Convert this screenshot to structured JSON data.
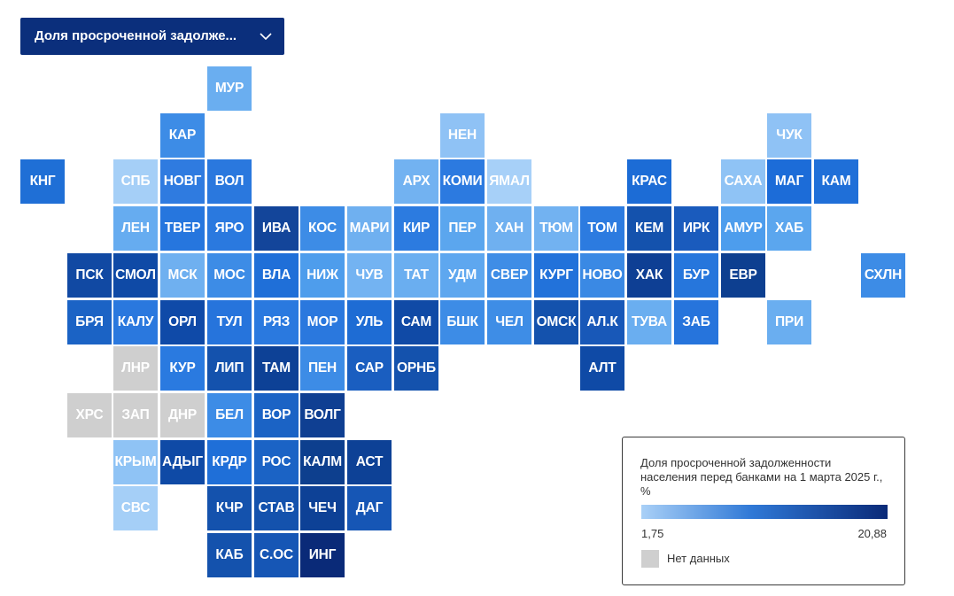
{
  "dropdown": {
    "label": "Доля просроченной задолже...",
    "icon": "chevron-down-icon"
  },
  "legend": {
    "title": "Доля просроченной задолженности населения перед банками на 1 марта 2025 г., %",
    "min": "1,75",
    "max": "20,88",
    "nodata_label": "Нет данных",
    "colors": {
      "low": "#a9d0f7",
      "mid": "#2f78d6",
      "high": "#0a2a78",
      "nodata": "#cfcfcf"
    }
  },
  "tiles": [
    {
      "label": "МУР",
      "row": 0,
      "col": 4,
      "color": "#6aaef0"
    },
    {
      "label": "КАР",
      "row": 1,
      "col": 3,
      "color": "#3d8ce6"
    },
    {
      "label": "НЕН",
      "row": 1,
      "col": 9,
      "color": "#8fc2f5"
    },
    {
      "label": "ЧУК",
      "row": 1,
      "col": 16,
      "color": "#8fc2f5"
    },
    {
      "label": "КНГ",
      "row": 2,
      "col": 0,
      "color": "#1f6fd6"
    },
    {
      "label": "СПБ",
      "row": 2,
      "col": 2,
      "color": "#a5cff7"
    },
    {
      "label": "НОВГ",
      "row": 2,
      "col": 3,
      "color": "#2f7be0"
    },
    {
      "label": "ВОЛ",
      "row": 2,
      "col": 4,
      "color": "#2a78de"
    },
    {
      "label": "АРХ",
      "row": 2,
      "col": 8,
      "color": "#72b2f1"
    },
    {
      "label": "КОМИ",
      "row": 2,
      "col": 9,
      "color": "#2c7ae0"
    },
    {
      "label": "ЯМАЛ",
      "row": 2,
      "col": 10,
      "color": "#a7d0f8"
    },
    {
      "label": "КРАС",
      "row": 2,
      "col": 13,
      "color": "#1c6cd6"
    },
    {
      "label": "САХА",
      "row": 2,
      "col": 15,
      "color": "#8fc3f5"
    },
    {
      "label": "МАГ",
      "row": 2,
      "col": 16,
      "color": "#1c6cd8"
    },
    {
      "label": "КАМ",
      "row": 2,
      "col": 17,
      "color": "#1f6fd8"
    },
    {
      "label": "ЛЕН",
      "row": 3,
      "col": 2,
      "color": "#66acf0"
    },
    {
      "label": "ТВЕР",
      "row": 3,
      "col": 3,
      "color": "#2676de"
    },
    {
      "label": "ЯРО",
      "row": 3,
      "col": 4,
      "color": "#2a79df"
    },
    {
      "label": "ИВА",
      "row": 3,
      "col": 5,
      "color": "#13459a"
    },
    {
      "label": "КОС",
      "row": 3,
      "col": 6,
      "color": "#3d8ce6"
    },
    {
      "label": "МАРИ",
      "row": 3,
      "col": 7,
      "color": "#6fb0f0"
    },
    {
      "label": "КИР",
      "row": 3,
      "col": 8,
      "color": "#2c7be0"
    },
    {
      "label": "ПЕР",
      "row": 3,
      "col": 9,
      "color": "#5ba6ee"
    },
    {
      "label": "ХАН",
      "row": 3,
      "col": 10,
      "color": "#6fb0f0"
    },
    {
      "label": "ТЮМ",
      "row": 3,
      "col": 11,
      "color": "#72b2f1"
    },
    {
      "label": "ТОМ",
      "row": 3,
      "col": 12,
      "color": "#2c7be0"
    },
    {
      "label": "КЕМ",
      "row": 3,
      "col": 13,
      "color": "#1452ad"
    },
    {
      "label": "ИРК",
      "row": 3,
      "col": 14,
      "color": "#1a5bbd"
    },
    {
      "label": "АМУР",
      "row": 3,
      "col": 15,
      "color": "#4d9ded"
    },
    {
      "label": "ХАБ",
      "row": 3,
      "col": 16,
      "color": "#5ba6ee"
    },
    {
      "label": "ПСК",
      "row": 4,
      "col": 1,
      "color": "#1149a3"
    },
    {
      "label": "СМОЛ",
      "row": 4,
      "col": 2,
      "color": "#0f4aa6"
    },
    {
      "label": "МСК",
      "row": 4,
      "col": 3,
      "color": "#6fb0f0"
    },
    {
      "label": "МОС",
      "row": 4,
      "col": 4,
      "color": "#3d8ce6"
    },
    {
      "label": "ВЛА",
      "row": 4,
      "col": 5,
      "color": "#1f6fd8"
    },
    {
      "label": "НИЖ",
      "row": 4,
      "col": 6,
      "color": "#4e9dec"
    },
    {
      "label": "ЧУВ",
      "row": 4,
      "col": 7,
      "color": "#73b3f2"
    },
    {
      "label": "ТАТ",
      "row": 4,
      "col": 8,
      "color": "#6aaef0"
    },
    {
      "label": "УДМ",
      "row": 4,
      "col": 9,
      "color": "#5ea7ef"
    },
    {
      "label": "СВЕР",
      "row": 4,
      "col": 10,
      "color": "#3f8de6"
    },
    {
      "label": "КУРГ",
      "row": 4,
      "col": 11,
      "color": "#2272da"
    },
    {
      "label": "НОВО",
      "row": 4,
      "col": 12,
      "color": "#3a89e4"
    },
    {
      "label": "ХАК",
      "row": 4,
      "col": 13,
      "color": "#0e3f94"
    },
    {
      "label": "БУР",
      "row": 4,
      "col": 14,
      "color": "#2676dc"
    },
    {
      "label": "ЕВР",
      "row": 4,
      "col": 15,
      "color": "#0d3f90"
    },
    {
      "label": "СХЛН",
      "row": 4,
      "col": 18,
      "color": "#3d8ce6"
    },
    {
      "label": "БРЯ",
      "row": 5,
      "col": 1,
      "color": "#1b63c5"
    },
    {
      "label": "КАЛУ",
      "row": 5,
      "col": 2,
      "color": "#2a78de"
    },
    {
      "label": "ОРЛ",
      "row": 5,
      "col": 3,
      "color": "#0f4aa8"
    },
    {
      "label": "ТУЛ",
      "row": 5,
      "col": 4,
      "color": "#2674dc"
    },
    {
      "label": "РЯЗ",
      "row": 5,
      "col": 5,
      "color": "#2a79df"
    },
    {
      "label": "МОР",
      "row": 5,
      "col": 6,
      "color": "#2a78de"
    },
    {
      "label": "УЛЬ",
      "row": 5,
      "col": 7,
      "color": "#1e6cd4"
    },
    {
      "label": "САМ",
      "row": 5,
      "col": 8,
      "color": "#104aa6"
    },
    {
      "label": "БШК",
      "row": 5,
      "col": 9,
      "color": "#3d8ce6"
    },
    {
      "label": "ЧЕЛ",
      "row": 5,
      "col": 10,
      "color": "#3e8de6"
    },
    {
      "label": "ОМСК",
      "row": 5,
      "col": 11,
      "color": "#1452ad"
    },
    {
      "label": "АЛ.К",
      "row": 5,
      "col": 12,
      "color": "#1858b8"
    },
    {
      "label": "ТУВА",
      "row": 5,
      "col": 13,
      "color": "#6aaef0"
    },
    {
      "label": "ЗАБ",
      "row": 5,
      "col": 14,
      "color": "#2674dc"
    },
    {
      "label": "ПРИ",
      "row": 5,
      "col": 16,
      "color": "#6aaef0"
    },
    {
      "label": "ЛНР",
      "row": 6,
      "col": 2,
      "color": "#cfcfcf"
    },
    {
      "label": "КУР",
      "row": 6,
      "col": 3,
      "color": "#2a7ae0"
    },
    {
      "label": "ЛИП",
      "row": 6,
      "col": 4,
      "color": "#1452ad"
    },
    {
      "label": "ТАМ",
      "row": 6,
      "col": 5,
      "color": "#0d4196"
    },
    {
      "label": "ПЕН",
      "row": 6,
      "col": 6,
      "color": "#3d8ce6"
    },
    {
      "label": "САР",
      "row": 6,
      "col": 7,
      "color": "#1a5ec0"
    },
    {
      "label": "ОРНБ",
      "row": 6,
      "col": 8,
      "color": "#1452ad"
    },
    {
      "label": "АЛТ",
      "row": 6,
      "col": 12,
      "color": "#0f4aa6"
    },
    {
      "label": "ХРС",
      "row": 7,
      "col": 1,
      "color": "#cfcfcf"
    },
    {
      "label": "ЗАП",
      "row": 7,
      "col": 2,
      "color": "#cfcfcf"
    },
    {
      "label": "ДНР",
      "row": 7,
      "col": 3,
      "color": "#cfcfcf"
    },
    {
      "label": "БЕЛ",
      "row": 7,
      "col": 4,
      "color": "#3d8ce6"
    },
    {
      "label": "ВОР",
      "row": 7,
      "col": 5,
      "color": "#1b63c5"
    },
    {
      "label": "ВОЛГ",
      "row": 7,
      "col": 6,
      "color": "#0f3f92"
    },
    {
      "label": "КРЫМ",
      "row": 8,
      "col": 2,
      "color": "#8fc3f5"
    },
    {
      "label": "АДЫГ",
      "row": 8,
      "col": 3,
      "color": "#0f4aa6"
    },
    {
      "label": "КРДР",
      "row": 8,
      "col": 4,
      "color": "#1f6fd8"
    },
    {
      "label": "РОС",
      "row": 8,
      "col": 5,
      "color": "#1b63c5"
    },
    {
      "label": "КАЛМ",
      "row": 8,
      "col": 6,
      "color": "#0d3f8e"
    },
    {
      "label": "АСТ",
      "row": 8,
      "col": 7,
      "color": "#0d4196"
    },
    {
      "label": "СВС",
      "row": 9,
      "col": 2,
      "color": "#a5cff7"
    },
    {
      "label": "КЧР",
      "row": 9,
      "col": 4,
      "color": "#1452ad"
    },
    {
      "label": "СТАВ",
      "row": 9,
      "col": 5,
      "color": "#1452ad"
    },
    {
      "label": "ЧЕЧ",
      "row": 9,
      "col": 6,
      "color": "#0d4196"
    },
    {
      "label": "ДАГ",
      "row": 9,
      "col": 7,
      "color": "#1656b5"
    },
    {
      "label": "КАБ",
      "row": 10,
      "col": 4,
      "color": "#1452ad"
    },
    {
      "label": "С.ОС",
      "row": 10,
      "col": 5,
      "color": "#1656b5"
    },
    {
      "label": "ИНГ",
      "row": 10,
      "col": 6,
      "color": "#0a2a78"
    }
  ]
}
